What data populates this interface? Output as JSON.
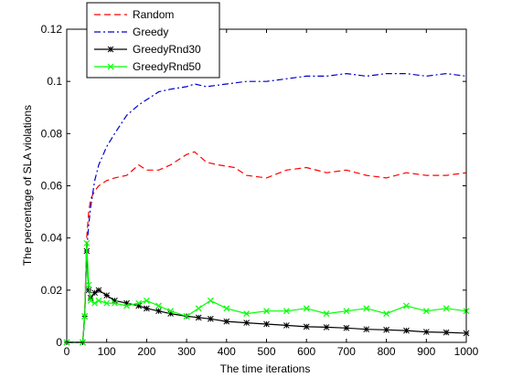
{
  "chart_data": {
    "type": "line",
    "title": "",
    "xlabel": "The time iterations",
    "ylabel": "The percentage of SLA violations",
    "xlim": [
      0,
      1000
    ],
    "ylim": [
      0,
      0.12
    ],
    "xticks": [
      0,
      100,
      200,
      300,
      400,
      500,
      600,
      700,
      800,
      900,
      1000
    ],
    "yticks": [
      0,
      0.02,
      0.04,
      0.06,
      0.08,
      0.1,
      0.12
    ],
    "ytick_labels": [
      "0",
      "0.02",
      "0.04",
      "0.06",
      "0.08",
      "0.1",
      "0.12"
    ],
    "grid": false,
    "legend_position": "top-left (inside, offset right)",
    "series": [
      {
        "name": "Random",
        "color": "#ff0000",
        "line_style": "dashed",
        "marker": "none",
        "x": [
          0,
          40,
          45,
          50,
          55,
          60,
          70,
          80,
          100,
          120,
          150,
          180,
          200,
          230,
          260,
          300,
          320,
          350,
          380,
          420,
          450,
          500,
          550,
          600,
          650,
          700,
          750,
          800,
          850,
          900,
          950,
          1000
        ],
        "y": [
          0,
          0,
          0.012,
          0.04,
          0.05,
          0.055,
          0.058,
          0.06,
          0.062,
          0.063,
          0.064,
          0.068,
          0.066,
          0.066,
          0.068,
          0.072,
          0.073,
          0.069,
          0.068,
          0.067,
          0.064,
          0.063,
          0.066,
          0.067,
          0.065,
          0.066,
          0.064,
          0.063,
          0.065,
          0.064,
          0.064,
          0.065
        ]
      },
      {
        "name": "Greedy",
        "color": "#0000cc",
        "line_style": "dash-dot",
        "marker": "none",
        "x": [
          0,
          40,
          45,
          50,
          55,
          60,
          70,
          80,
          100,
          120,
          150,
          180,
          200,
          230,
          260,
          300,
          320,
          350,
          400,
          450,
          500,
          550,
          600,
          650,
          700,
          750,
          800,
          850,
          900,
          950,
          1000
        ],
        "y": [
          0,
          0,
          0.01,
          0.035,
          0.045,
          0.052,
          0.062,
          0.068,
          0.075,
          0.08,
          0.087,
          0.091,
          0.093,
          0.096,
          0.097,
          0.098,
          0.099,
          0.098,
          0.099,
          0.1,
          0.1,
          0.101,
          0.102,
          0.102,
          0.103,
          0.102,
          0.103,
          0.103,
          0.102,
          0.103,
          0.102
        ]
      },
      {
        "name": "GreedyRnd30",
        "color": "#000000",
        "line_style": "solid",
        "marker": "asterisk",
        "x": [
          0,
          40,
          45,
          50,
          55,
          60,
          70,
          80,
          100,
          120,
          150,
          180,
          200,
          230,
          260,
          300,
          330,
          360,
          400,
          450,
          500,
          550,
          600,
          650,
          700,
          750,
          800,
          850,
          900,
          950,
          1000
        ],
        "y": [
          0,
          0,
          0.01,
          0.035,
          0.02,
          0.017,
          0.019,
          0.02,
          0.018,
          0.016,
          0.015,
          0.014,
          0.013,
          0.012,
          0.011,
          0.01,
          0.0095,
          0.009,
          0.008,
          0.0075,
          0.007,
          0.0065,
          0.006,
          0.0058,
          0.0055,
          0.005,
          0.0048,
          0.0045,
          0.004,
          0.0038,
          0.0035
        ]
      },
      {
        "name": "GreedyRnd50",
        "color": "#00ff00",
        "line_style": "solid",
        "marker": "x",
        "x": [
          0,
          40,
          45,
          50,
          55,
          60,
          70,
          80,
          100,
          120,
          150,
          180,
          200,
          230,
          260,
          300,
          330,
          360,
          400,
          450,
          500,
          550,
          600,
          650,
          700,
          750,
          800,
          850,
          900,
          950,
          1000
        ],
        "y": [
          0,
          0,
          0.01,
          0.038,
          0.022,
          0.016,
          0.015,
          0.016,
          0.015,
          0.015,
          0.014,
          0.015,
          0.016,
          0.014,
          0.012,
          0.01,
          0.013,
          0.016,
          0.013,
          0.011,
          0.012,
          0.012,
          0.013,
          0.011,
          0.012,
          0.013,
          0.011,
          0.014,
          0.012,
          0.013,
          0.012
        ]
      }
    ]
  }
}
